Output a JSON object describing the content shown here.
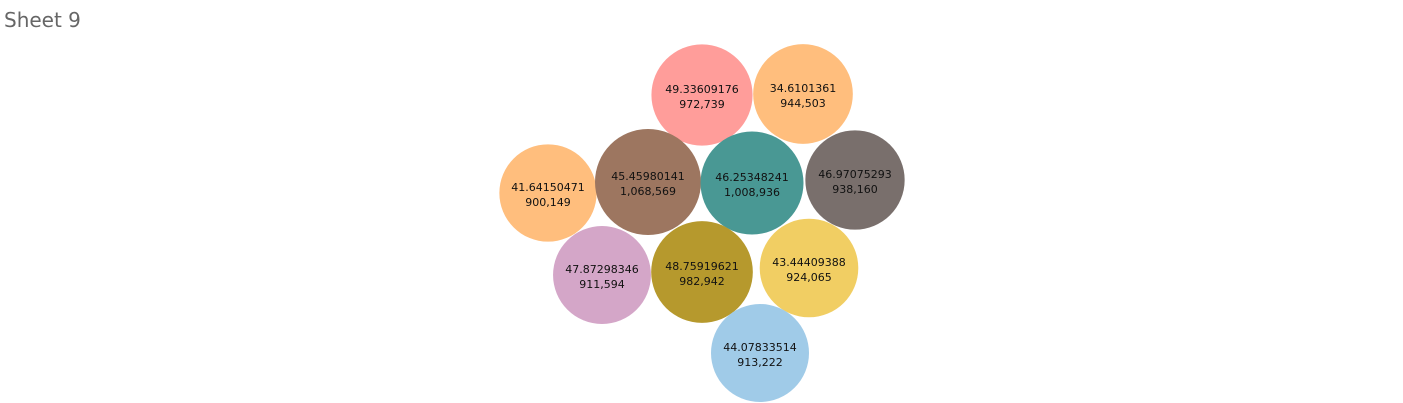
{
  "sheet": {
    "title": "Sheet 9"
  },
  "chart_data": {
    "type": "packed-bubble",
    "title": "Sheet 9",
    "bubbles": [
      {
        "label": "49.33609176",
        "value": 972739,
        "value_label": "972,739",
        "color": "#FF9D9A"
      },
      {
        "label": "34.6101361",
        "value": 944503,
        "value_label": "944,503",
        "color": "#FFBE7D"
      },
      {
        "label": "41.64150471",
        "value": 900149,
        "value_label": "900,149",
        "color": "#FFBE7D"
      },
      {
        "label": "45.45980141",
        "value": 1068569,
        "value_label": "1,068,569",
        "color": "#9D7660"
      },
      {
        "label": "46.25348241",
        "value": 1008936,
        "value_label": "1,008,936",
        "color": "#499894"
      },
      {
        "label": "46.97075293",
        "value": 938160,
        "value_label": "938,160",
        "color": "#796F6C"
      },
      {
        "label": "47.87298346",
        "value": 911594,
        "value_label": "911,594",
        "color": "#D4A6C8"
      },
      {
        "label": "48.75919621",
        "value": 982942,
        "value_label": "982,942",
        "color": "#B6992D"
      },
      {
        "label": "43.44409388",
        "value": 924065,
        "value_label": "924,065",
        "color": "#F1CE63"
      },
      {
        "label": "44.07833514",
        "value": 913222,
        "value_label": "913,222",
        "color": "#A0CBE8"
      }
    ]
  }
}
